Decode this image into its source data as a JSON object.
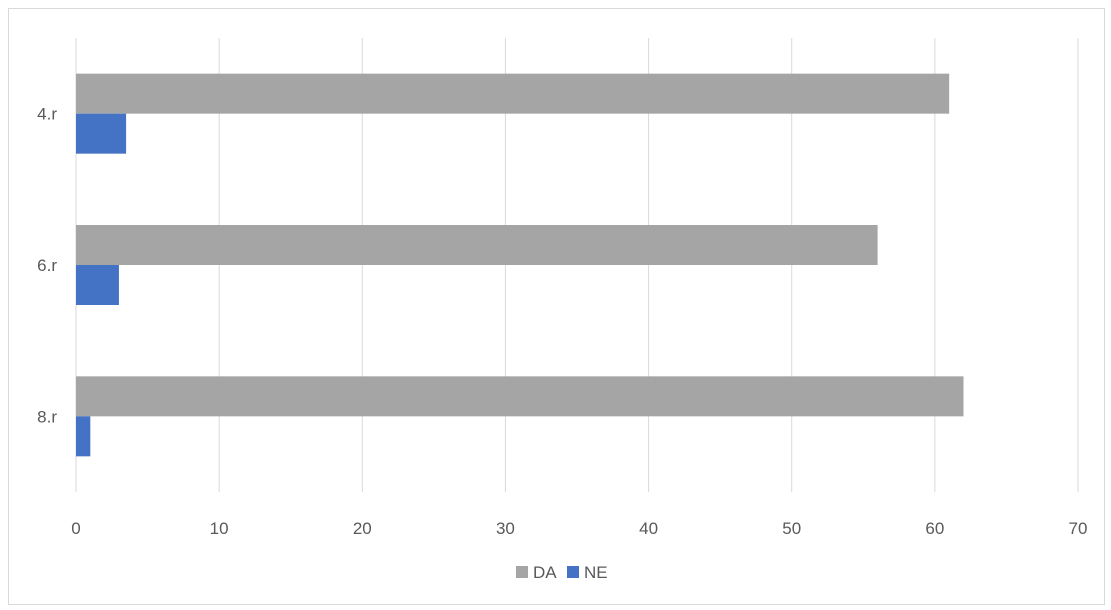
{
  "chart_data": {
    "type": "bar",
    "orientation": "horizontal",
    "categories": [
      "4.r",
      "6.r",
      "8.r"
    ],
    "series": [
      {
        "name": "DA",
        "values": [
          61,
          56,
          62
        ],
        "color": "#a5a5a5"
      },
      {
        "name": "NE",
        "values": [
          3.5,
          3,
          1
        ],
        "color": "#4472c4"
      }
    ],
    "xlim": [
      0,
      70
    ],
    "xticks": [
      0,
      10,
      20,
      30,
      40,
      50,
      60,
      70
    ],
    "grid": "vertical",
    "gridColor": "#d9d9d9",
    "legend_position": "bottom"
  }
}
